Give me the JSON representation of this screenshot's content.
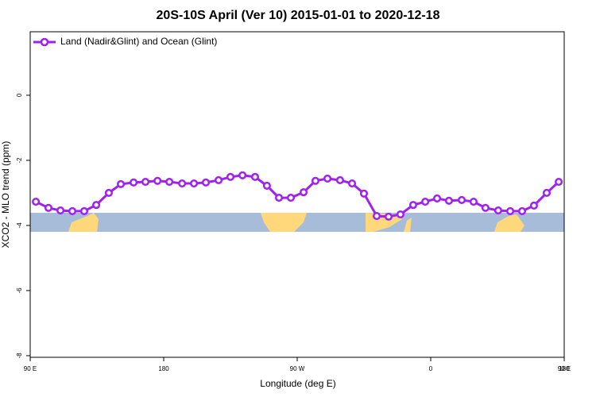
{
  "chart_data": {
    "type": "line",
    "title": "20S-10S April (Ver 10)   2015-01-01 to 2020-12-18",
    "x_label": "Longitude (deg E)",
    "y_label": "XCO2 - MLO trend (ppm)",
    "legend": "top-left",
    "xlim": [
      90,
      450
    ],
    "ylim": [
      -8.05,
      1.95
    ],
    "xticks": [
      {
        "value": 90,
        "label": "90 E"
      },
      180,
      {
        "value": 270,
        "label": "90 W"
      },
      {
        "value": 360,
        "label": "0"
      },
      {
        "value": 450,
        "label": "90 E"
      },
      {
        "value": 540,
        "label": "180"
      }
    ],
    "yticks": [
      0,
      -2,
      -4,
      -6,
      -8
    ],
    "x": [
      93.8,
      102.3,
      110.4,
      118.4,
      126.4,
      134.5,
      143.0,
      151.1,
      159.7,
      167.7,
      175.8,
      183.8,
      192.4,
      200.4,
      208.4,
      217.0,
      225.0,
      233.1,
      241.6,
      249.6,
      257.7,
      265.7,
      274.3,
      282.3,
      290.4,
      298.9,
      307.0,
      315.0,
      323.6,
      331.6,
      339.6,
      348.2,
      356.3,
      364.3,
      372.3,
      380.9,
      388.9,
      396.9,
      405.5,
      413.6,
      421.6,
      429.6,
      438.2,
      446.3
    ],
    "series": [
      {
        "name": "Land (Nadir&Glint) and Ocean (Glint)",
        "color": "#a020f0",
        "values": [
          -3.27,
          -3.46,
          -3.54,
          -3.56,
          -3.56,
          -3.37,
          -3.0,
          -2.73,
          -2.68,
          -2.66,
          -2.63,
          -2.66,
          -2.71,
          -2.71,
          -2.68,
          -2.61,
          -2.51,
          -2.46,
          -2.51,
          -2.78,
          -3.15,
          -3.15,
          -2.98,
          -2.63,
          -2.56,
          -2.61,
          -2.71,
          -3.02,
          -3.71,
          -3.73,
          -3.66,
          -3.37,
          -3.27,
          -3.17,
          -3.24,
          -3.22,
          -3.27,
          -3.46,
          -3.54,
          -3.56,
          -3.56,
          -3.39,
          -3.0,
          -2.66
        ]
      }
    ]
  }
}
